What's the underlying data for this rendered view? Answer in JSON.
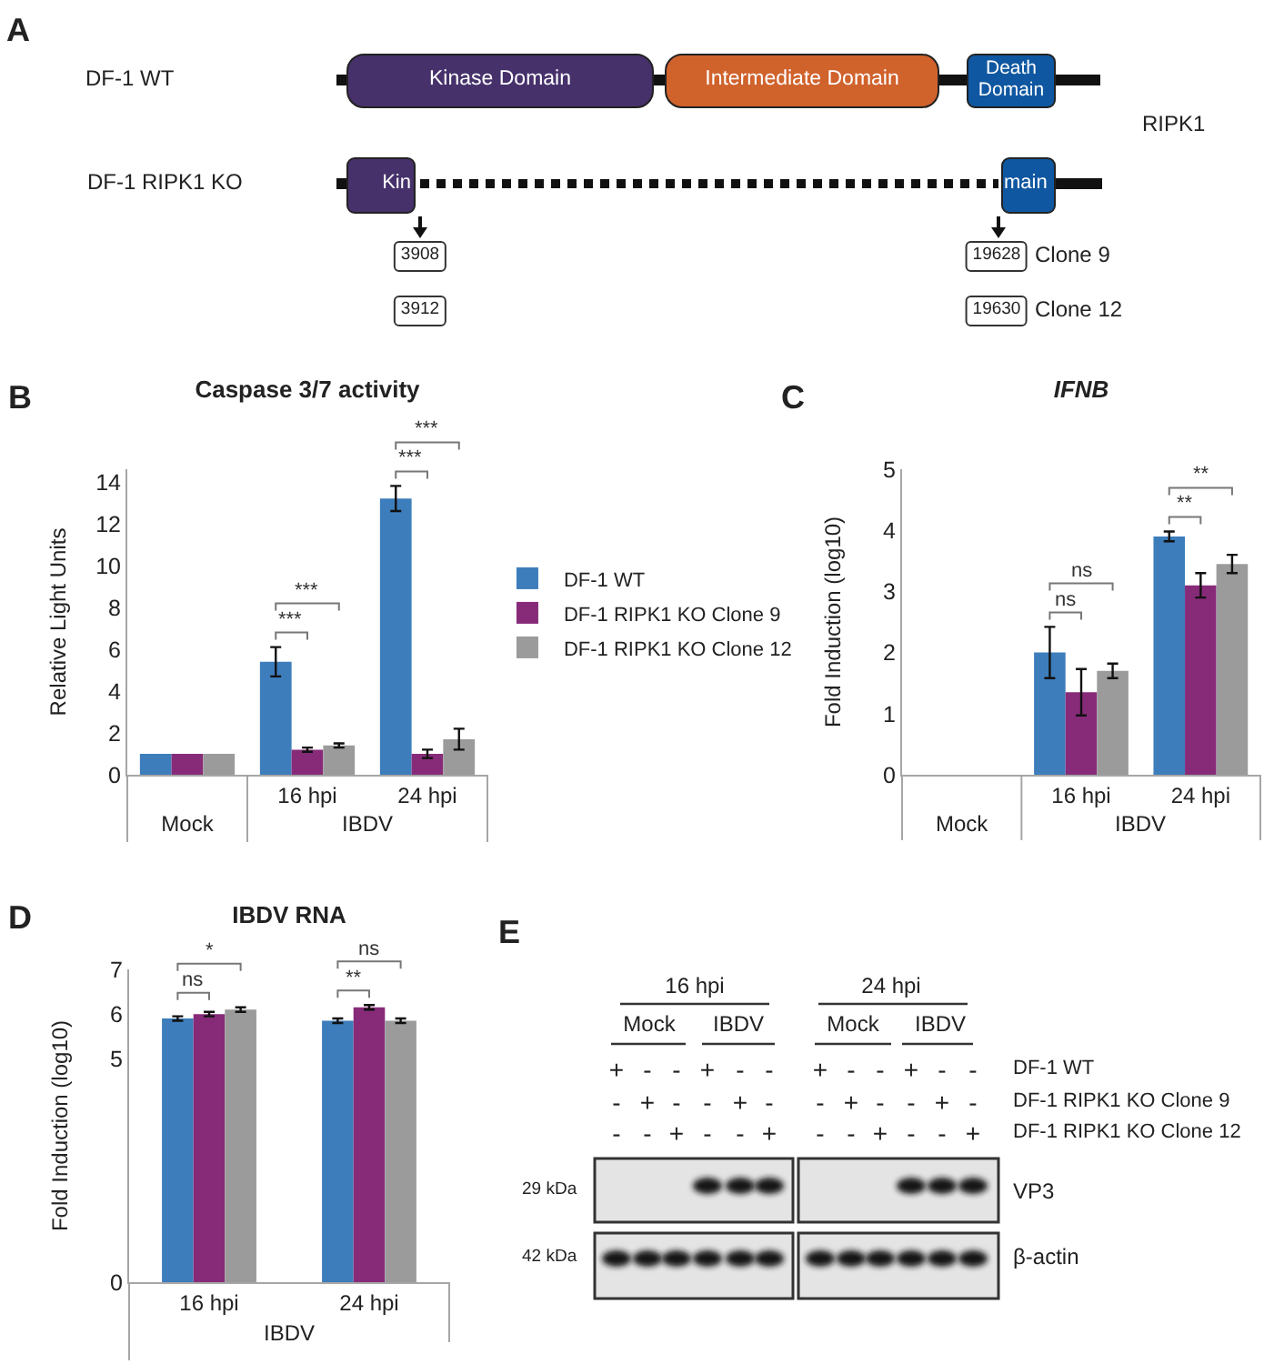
{
  "chart_data": [
    {
      "type": "other",
      "annotations": [
        "A",
        "DF-1 WT",
        "Kinase Domain",
        "Intermediate Domain",
        "Death Domain",
        "RIPK1",
        "DF-1 RIPK1 KO",
        "Kin",
        "main",
        "3908",
        "3912",
        "19628",
        "19630",
        "Clone 9",
        "Clone 12"
      ]
    },
    {
      "type": "bar",
      "title": "Caspase 3/7 activity",
      "ylabel": "Relative Light Units",
      "categories": [
        "Mock",
        "16 hpi",
        "24 hpi"
      ],
      "series": [
        {
          "name": "DF-1 WT",
          "color": "#3d7dbb",
          "values": [
            1.0,
            5.4,
            13.2
          ],
          "errors": [
            null,
            0.7,
            0.6
          ]
        },
        {
          "name": "DF-1 RIPK1 KO Clone 9",
          "color": "#872b79",
          "values": [
            1.0,
            1.2,
            1.0
          ],
          "errors": [
            null,
            0.1,
            0.2
          ]
        },
        {
          "name": "DF-1 RIPK1 KO Clone 12",
          "color": "#9b9b9b",
          "values": [
            1.0,
            1.4,
            1.7
          ],
          "errors": [
            null,
            0.1,
            0.5
          ]
        }
      ],
      "ylim": [
        0,
        14.6
      ],
      "yticks": [
        0,
        2,
        4,
        6,
        8,
        10,
        12,
        14
      ],
      "legend": "right",
      "annotations": [
        "B",
        "IBDV",
        "***",
        "***",
        "***",
        "***"
      ]
    },
    {
      "type": "bar",
      "title": "IFNB",
      "ylabel": "Fold Induction (log10)",
      "categories": [
        "Mock",
        "16 hpi",
        "24 hpi"
      ],
      "series": [
        {
          "color": "#3d7dbb",
          "values": [
            0,
            2.0,
            3.9
          ],
          "errors": [
            null,
            0.42,
            0.08
          ]
        },
        {
          "color": "#872b79",
          "values": [
            0,
            1.35,
            3.1
          ],
          "errors": [
            null,
            0.38,
            0.2
          ]
        },
        {
          "color": "#9b9b9b",
          "values": [
            0,
            1.7,
            3.45
          ],
          "errors": [
            null,
            0.12,
            0.15
          ]
        }
      ],
      "ylim": [
        0,
        5
      ],
      "yticks": [
        0,
        1,
        2,
        3,
        4,
        5
      ],
      "annotations": [
        "C",
        "IBDV",
        "ns",
        "ns",
        "**",
        "**"
      ]
    },
    {
      "type": "bar",
      "title": "IBDV RNA",
      "ylabel": "Fold Induction (log10)",
      "categories": [
        "16 hpi",
        "24 hpi"
      ],
      "series": [
        {
          "color": "#3d7dbb",
          "values": [
            5.9,
            5.85
          ],
          "errors": [
            0.05,
            0.05
          ]
        },
        {
          "color": "#872b79",
          "values": [
            6.0,
            6.15
          ],
          "errors": [
            0.05,
            0.05
          ]
        },
        {
          "color": "#9b9b9b",
          "values": [
            6.1,
            5.85
          ],
          "errors": [
            0.05,
            0.05
          ]
        }
      ],
      "ylim": [
        0,
        7
      ],
      "yticks": [
        0,
        5,
        6,
        7
      ],
      "annotations": [
        "D",
        "IBDV",
        "ns",
        "*",
        "**",
        "ns"
      ]
    },
    {
      "type": "other",
      "annotations": [
        "E",
        "16 hpi",
        "24 hpi",
        "Mock",
        "IBDV",
        "Mock",
        "IBDV",
        "+",
        "-",
        "-",
        "+",
        "-",
        "-",
        "+",
        "-",
        "-",
        "+",
        "-",
        "-",
        "-",
        "+",
        "-",
        "-",
        "+",
        "-",
        "-",
        "+",
        "-",
        "-",
        "+",
        "-",
        "-",
        "-",
        "+",
        "-",
        "-",
        "+",
        "-",
        "-",
        "+",
        "-",
        "-",
        "+",
        "DF-1 WT",
        "DF-1 RIPK1 KO Clone 9",
        "DF-1 RIPK1 KO Clone 12",
        "29 kDa",
        "42 kDa",
        "VP3",
        "β-actin"
      ]
    }
  ]
}
